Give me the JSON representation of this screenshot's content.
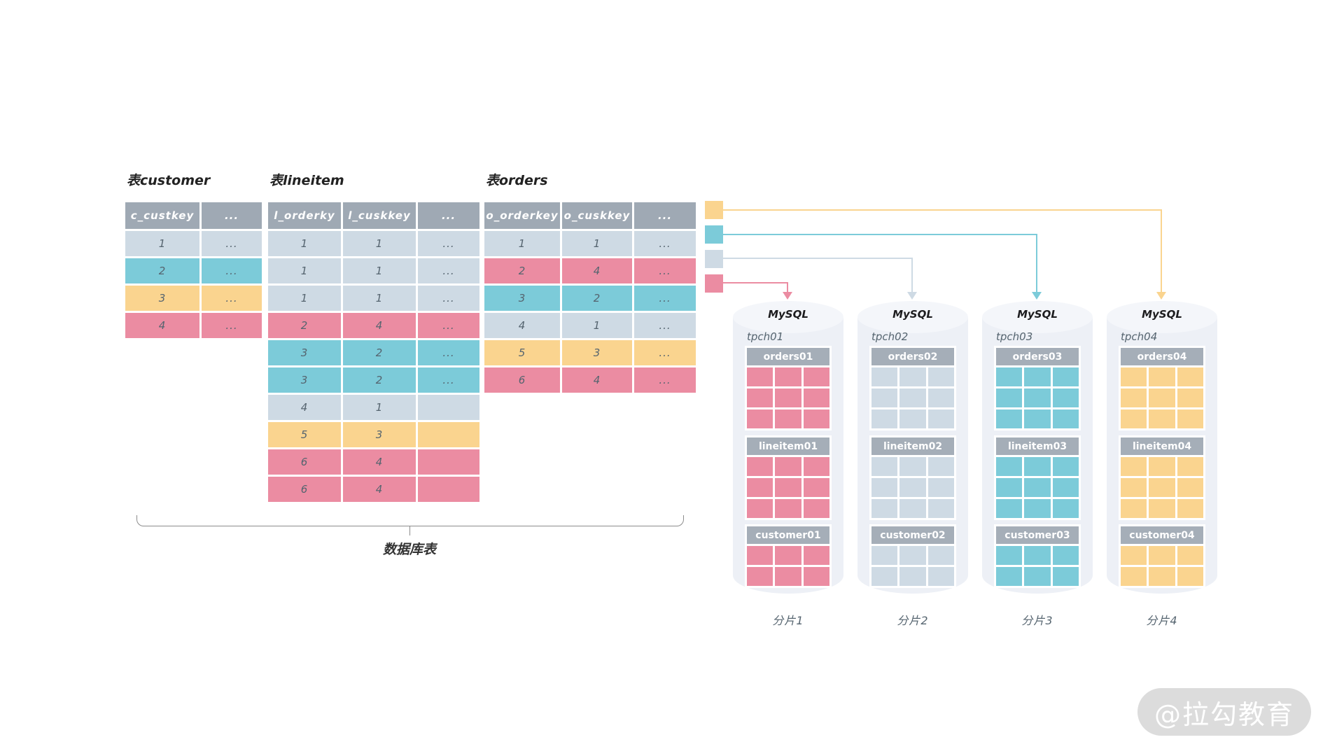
{
  "colors": {
    "pink": "#EB8CA2",
    "teal": "#7CCBD9",
    "yellow": "#FAD48F",
    "gray": "#CEDAE4",
    "headerGray": "#9FA9B4",
    "shardHeader": "#A5AEB8",
    "cyl": "#EDF0F6",
    "cylTop": "#F4F6FA"
  },
  "tables": [
    {
      "title": "表customer",
      "columns": [
        "c_custkey",
        "..."
      ],
      "rows": [
        {
          "cells": [
            "1",
            "..."
          ],
          "color": "gray"
        },
        {
          "cells": [
            "2",
            "..."
          ],
          "color": "teal"
        },
        {
          "cells": [
            "3",
            "..."
          ],
          "color": "yellow"
        },
        {
          "cells": [
            "4",
            "..."
          ],
          "color": "pink"
        }
      ]
    },
    {
      "title": "表lineitem",
      "columns": [
        "l_orderky",
        "l_cuskkey",
        "..."
      ],
      "rows": [
        {
          "cells": [
            "1",
            "1",
            "..."
          ],
          "color": "gray"
        },
        {
          "cells": [
            "1",
            "1",
            "..."
          ],
          "color": "gray"
        },
        {
          "cells": [
            "1",
            "1",
            "..."
          ],
          "color": "gray"
        },
        {
          "cells": [
            "2",
            "4",
            "..."
          ],
          "color": "pink"
        },
        {
          "cells": [
            "3",
            "2",
            "..."
          ],
          "color": "teal"
        },
        {
          "cells": [
            "3",
            "2",
            "..."
          ],
          "color": "teal"
        },
        {
          "cells": [
            "4",
            "1",
            ""
          ],
          "color": "gray"
        },
        {
          "cells": [
            "5",
            "3",
            ""
          ],
          "color": "yellow"
        },
        {
          "cells": [
            "6",
            "4",
            ""
          ],
          "color": "pink"
        },
        {
          "cells": [
            "6",
            "4",
            ""
          ],
          "color": "pink"
        }
      ]
    },
    {
      "title": "表orders",
      "columns": [
        "o_orderkey",
        "o_cuskkey",
        "..."
      ],
      "rows": [
        {
          "cells": [
            "1",
            "1",
            "..."
          ],
          "color": "gray"
        },
        {
          "cells": [
            "2",
            "4",
            "..."
          ],
          "color": "pink"
        },
        {
          "cells": [
            "3",
            "2",
            "..."
          ],
          "color": "teal"
        },
        {
          "cells": [
            "4",
            "1",
            "..."
          ],
          "color": "gray"
        },
        {
          "cells": [
            "5",
            "3",
            "..."
          ],
          "color": "yellow"
        },
        {
          "cells": [
            "6",
            "4",
            "..."
          ],
          "color": "pink"
        }
      ]
    }
  ],
  "bracket_label": "数据库表",
  "legend": [
    {
      "color": "yellow",
      "target": "分片4"
    },
    {
      "color": "teal",
      "target": "分片3"
    },
    {
      "color": "gray",
      "target": "分片2"
    },
    {
      "color": "pink",
      "target": "分片1"
    }
  ],
  "shards": [
    {
      "db": "MySQL",
      "schema": "tpch01",
      "color": "pink",
      "tables": [
        {
          "name": "orders01",
          "rows": 3,
          "cols": 3
        },
        {
          "name": "lineitem01",
          "rows": 3,
          "cols": 3
        },
        {
          "name": "customer01",
          "rows": 2,
          "cols": 3
        }
      ],
      "caption": "分片1"
    },
    {
      "db": "MySQL",
      "schema": "tpch02",
      "color": "gray",
      "tables": [
        {
          "name": "orders02",
          "rows": 3,
          "cols": 3
        },
        {
          "name": "lineitem02",
          "rows": 3,
          "cols": 3
        },
        {
          "name": "customer02",
          "rows": 2,
          "cols": 3
        }
      ],
      "caption": "分片2"
    },
    {
      "db": "MySQL",
      "schema": "tpch03",
      "color": "teal",
      "tables": [
        {
          "name": "orders03",
          "rows": 3,
          "cols": 3
        },
        {
          "name": "lineitem03",
          "rows": 3,
          "cols": 3
        },
        {
          "name": "customer03",
          "rows": 2,
          "cols": 3
        }
      ],
      "caption": "分片3"
    },
    {
      "db": "MySQL",
      "schema": "tpch04",
      "color": "yellow",
      "tables": [
        {
          "name": "orders04",
          "rows": 3,
          "cols": 3
        },
        {
          "name": "lineitem04",
          "rows": 3,
          "cols": 3
        },
        {
          "name": "customer04",
          "rows": 2,
          "cols": 3
        }
      ],
      "caption": "分片4"
    }
  ],
  "watermark": "@拉勾教育"
}
